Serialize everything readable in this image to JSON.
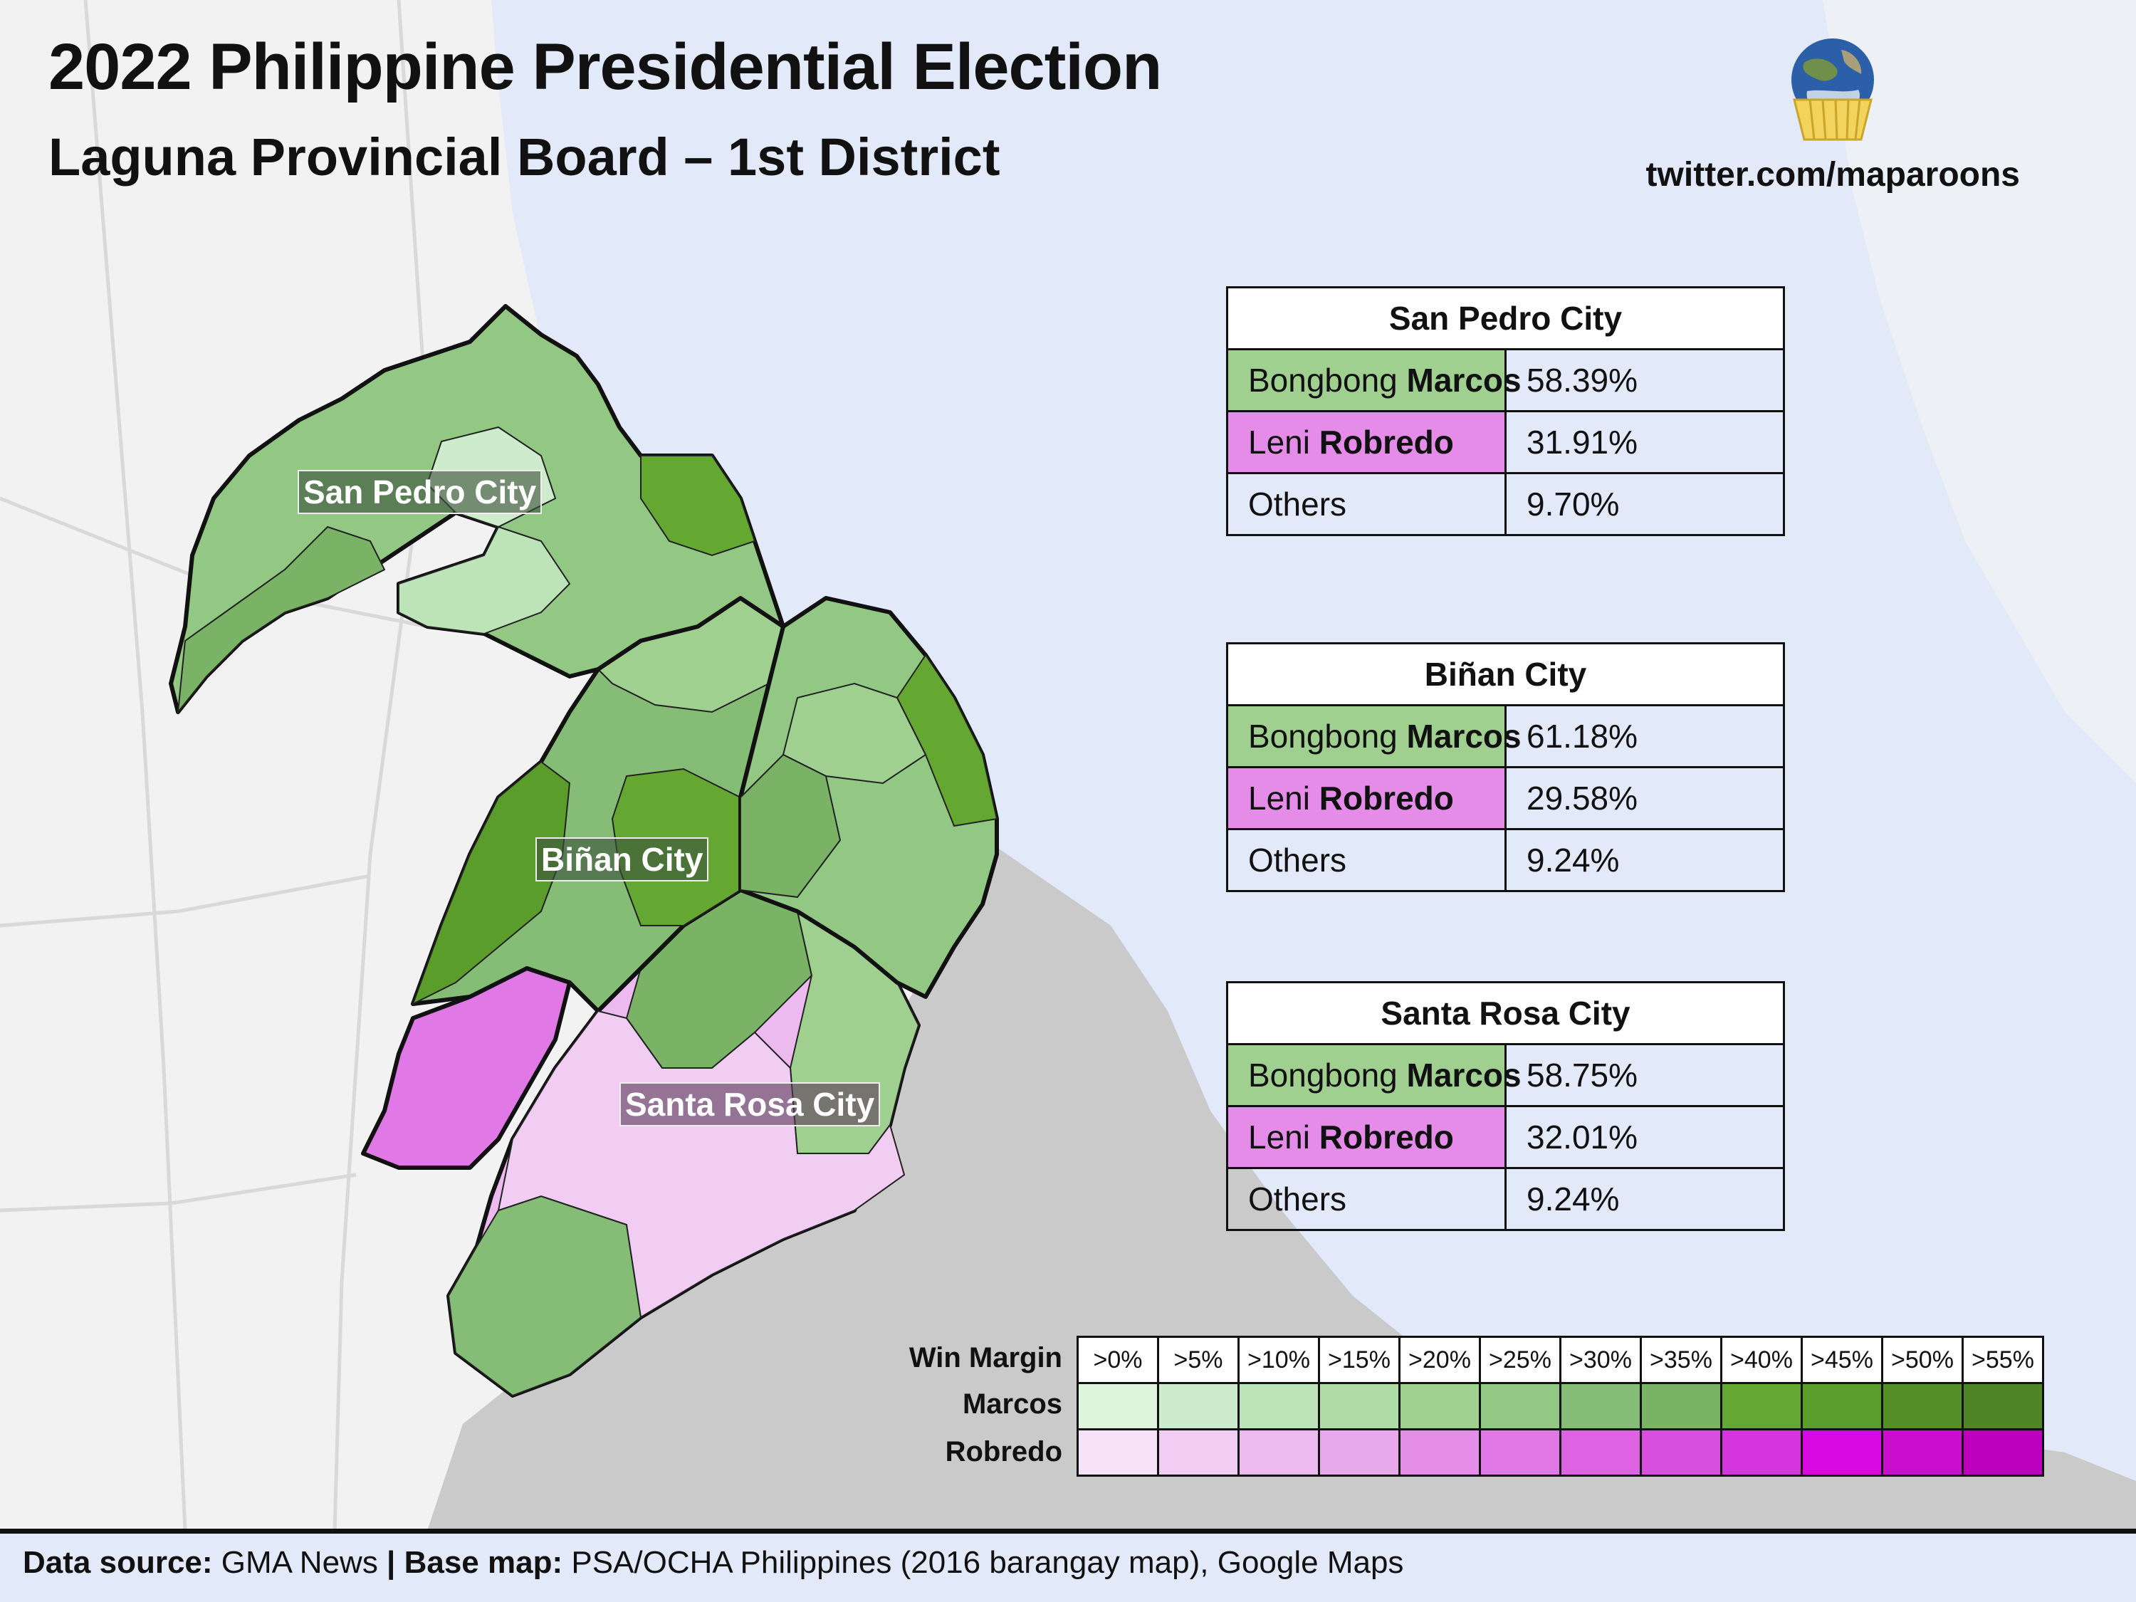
{
  "title": "2022 Philippine Presidential Election",
  "subtitle": "Laguna Provincial Board – 1st District",
  "credit": "twitter.com/maparoons",
  "logo_icon": "globe-cupcake-icon",
  "map": {
    "labels": {
      "san_pedro": "San Pedro City",
      "binan": "Biñan City",
      "santa_rosa": "Santa Rosa City"
    },
    "colors": {
      "water": "#e2e9f8",
      "land": "#f2f2f2",
      "lake_shore": "#cacaca",
      "road": "#d9d9d9"
    }
  },
  "results": [
    {
      "city": "San Pedro City",
      "rows": [
        {
          "first": "Bongbong ",
          "last": "Marcos",
          "pct": "58.39%"
        },
        {
          "first": "Leni ",
          "last": "Robredo",
          "pct": "31.91%"
        },
        {
          "first": "Others",
          "last": "",
          "pct": "9.70%"
        }
      ]
    },
    {
      "city": "Biñan City",
      "rows": [
        {
          "first": "Bongbong ",
          "last": "Marcos",
          "pct": "61.18%"
        },
        {
          "first": "Leni ",
          "last": "Robredo",
          "pct": "29.58%"
        },
        {
          "first": "Others",
          "last": "",
          "pct": "9.24%"
        }
      ]
    },
    {
      "city": "Santa Rosa City",
      "rows": [
        {
          "first": "Bongbong ",
          "last": "Marcos",
          "pct": "58.75%"
        },
        {
          "first": "Leni ",
          "last": "Robredo",
          "pct": "32.01%"
        },
        {
          "first": "Others",
          "last": "",
          "pct": "9.24%"
        }
      ]
    }
  ],
  "legend": {
    "title": "Win Margin",
    "marcos_label": "Marcos",
    "robredo_label": "Robredo",
    "bins": [
      ">0%",
      ">5%",
      ">10%",
      ">15%",
      ">20%",
      ">25%",
      ">30%",
      ">35%",
      ">40%",
      ">45%",
      ">50%",
      ">55%"
    ],
    "marcos_colors": [
      "#dcf5dc",
      "#cdeccb",
      "#bde3b9",
      "#afdba6",
      "#a0d08f",
      "#92c884",
      "#86bd76",
      "#7ab266",
      "#64a832",
      "#5b9d2a",
      "#558f28",
      "#4f8527"
    ],
    "robredo_colors": [
      "#f7e3f8",
      "#f1cdf3",
      "#edbaef",
      "#e8a9ec",
      "#e48ee8",
      "#e078e5",
      "#dc64e2",
      "#d74fde",
      "#d535dc",
      "#d609e2",
      "#c90fcd",
      "#bd00bd"
    ]
  },
  "footer": {
    "source_label": "Data source:",
    "source": " GMA News ",
    "sep": "|",
    "basemap_label": " Base map:",
    "basemap": " PSA/OCHA Philippines (2016 barangay map), Google Maps"
  }
}
